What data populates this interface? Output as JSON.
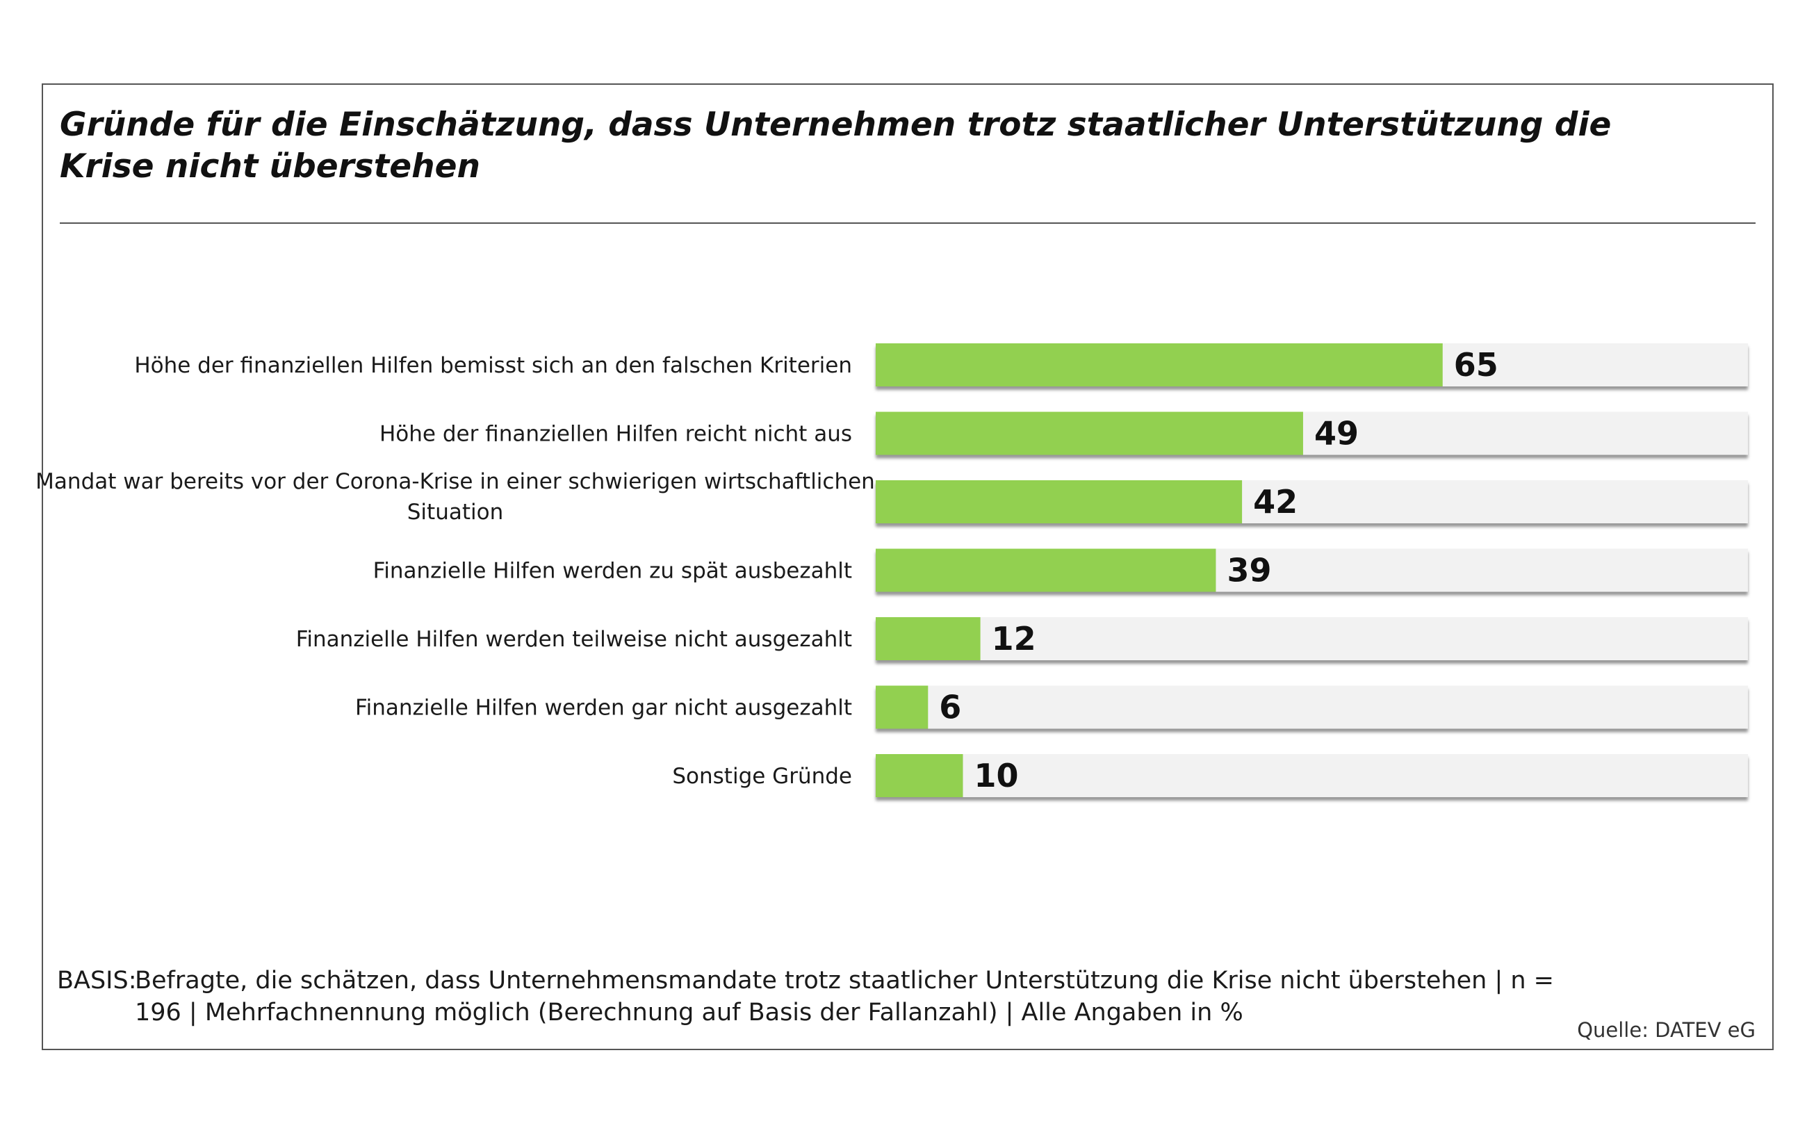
{
  "title": "Gründe für die Einschätzung, dass Unternehmen trotz staatlicher Unterstützung die Krise nicht überstehen",
  "footnote": {
    "label": "BASIS:",
    "text": "Befragte, die schätzen, dass Unternehmensmandate trotz staatlicher Unterstützung die Krise nicht überstehen | n = 196 | Mehrfachnennung möglich (Berechnung auf Basis der Fallanzahl) | Alle Angaben in %"
  },
  "source": "Quelle: DATEV eG",
  "colors": {
    "bar": "#92d050",
    "track": "#f2f2f2",
    "shadow": "#a6a6a6"
  },
  "chart_data": {
    "type": "bar",
    "orientation": "horizontal",
    "categories": [
      [
        "Höhe der finanziellen Hilfen bemisst sich an den falschen Kriterien"
      ],
      [
        "Höhe der finanziellen Hilfen reicht nicht aus"
      ],
      [
        "Mandat war bereits vor der Corona-Krise in einer schwierigen wirtschaftlichen",
        "Situation"
      ],
      [
        "Finanzielle Hilfen werden zu spät ausbezahlt"
      ],
      [
        "Finanzielle Hilfen werden teilweise nicht ausgezahlt"
      ],
      [
        "Finanzielle Hilfen werden gar nicht ausgezahlt"
      ],
      [
        "Sonstige Gründe"
      ]
    ],
    "values": [
      65,
      49,
      42,
      39,
      12,
      6,
      10
    ],
    "xlim": [
      0,
      100
    ],
    "grid": false,
    "legend": "none"
  }
}
